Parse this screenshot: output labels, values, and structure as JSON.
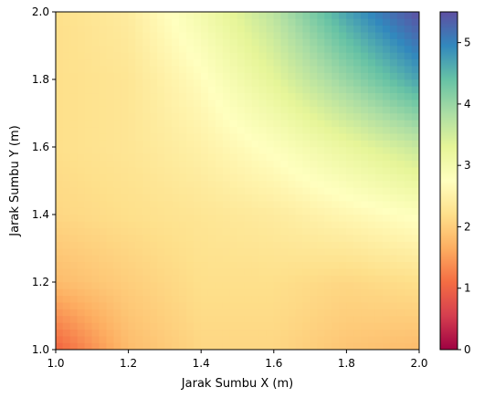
{
  "chart_data": {
    "type": "heatmap",
    "title": "",
    "xlabel": "Jarak Sumbu X (m)",
    "ylabel": "Jarak Sumbu Y (m)",
    "xlim": [
      1.0,
      2.0
    ],
    "ylim": [
      1.0,
      2.0
    ],
    "x_ticks": [
      "1.0",
      "1.2",
      "1.4",
      "1.6",
      "1.8",
      "2.0"
    ],
    "y_ticks": [
      "1.0",
      "1.2",
      "1.4",
      "1.6",
      "1.8",
      "2.0"
    ],
    "colorbar": {
      "range": [
        0,
        5.5
      ],
      "ticks": [
        "0",
        "1",
        "2",
        "3",
        "4",
        "5"
      ],
      "colormap": "Spectral",
      "colors": [
        "#9e0142",
        "#d53e4f",
        "#f46d43",
        "#fdae61",
        "#fee08b",
        "#ffffbf",
        "#e6f598",
        "#abdda4",
        "#66c2a5",
        "#3288bd",
        "#5e4fa2"
      ]
    },
    "x": [
      1.0,
      1.2,
      1.4,
      1.6,
      1.8,
      2.0
    ],
    "y": [
      1.0,
      1.2,
      1.4,
      1.6,
      1.8,
      2.0
    ],
    "z": [
      [
        1.0,
        1.8,
        2.1,
        2.1,
        1.9,
        1.8
      ],
      [
        1.8,
        2.0,
        2.2,
        2.2,
        2.1,
        2.2
      ],
      [
        2.1,
        2.2,
        2.3,
        2.4,
        2.6,
        2.8
      ],
      [
        2.2,
        2.3,
        2.5,
        2.8,
        3.2,
        3.6
      ],
      [
        2.2,
        2.3,
        2.7,
        3.3,
        4.0,
        4.7
      ],
      [
        2.2,
        2.4,
        3.0,
        3.7,
        4.7,
        5.5
      ]
    ]
  }
}
